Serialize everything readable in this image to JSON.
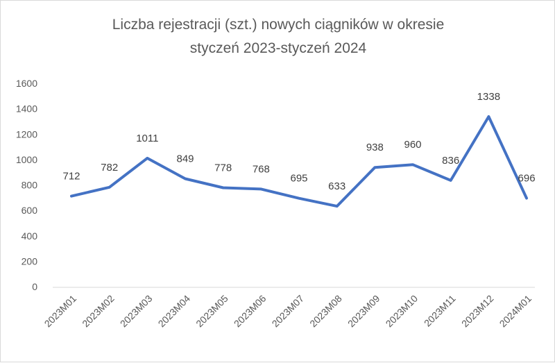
{
  "chart_data": {
    "type": "line",
    "title_line1": "Liczba rejestracji (szt.) nowych ciągników w okresie",
    "title_line2": "styczeń 2023-styczeń 2024",
    "categories": [
      "2023M01",
      "2023M02",
      "2023M03",
      "2023M04",
      "2023M05",
      "2023M06",
      "2023M07",
      "2023M08",
      "2023M09",
      "2023M10",
      "2023M11",
      "2023M12",
      "2024M01"
    ],
    "series": [
      {
        "values": [
          712,
          782,
          1011,
          849,
          778,
          768,
          695,
          633,
          938,
          960,
          836,
          1338,
          696
        ],
        "color": "#4472c4"
      }
    ],
    "ylim": [
      0,
      1600
    ],
    "yticks": [
      0,
      200,
      400,
      600,
      800,
      1000,
      1200,
      1400,
      1600
    ],
    "grid": false,
    "legend": "none",
    "data_labels": true
  }
}
